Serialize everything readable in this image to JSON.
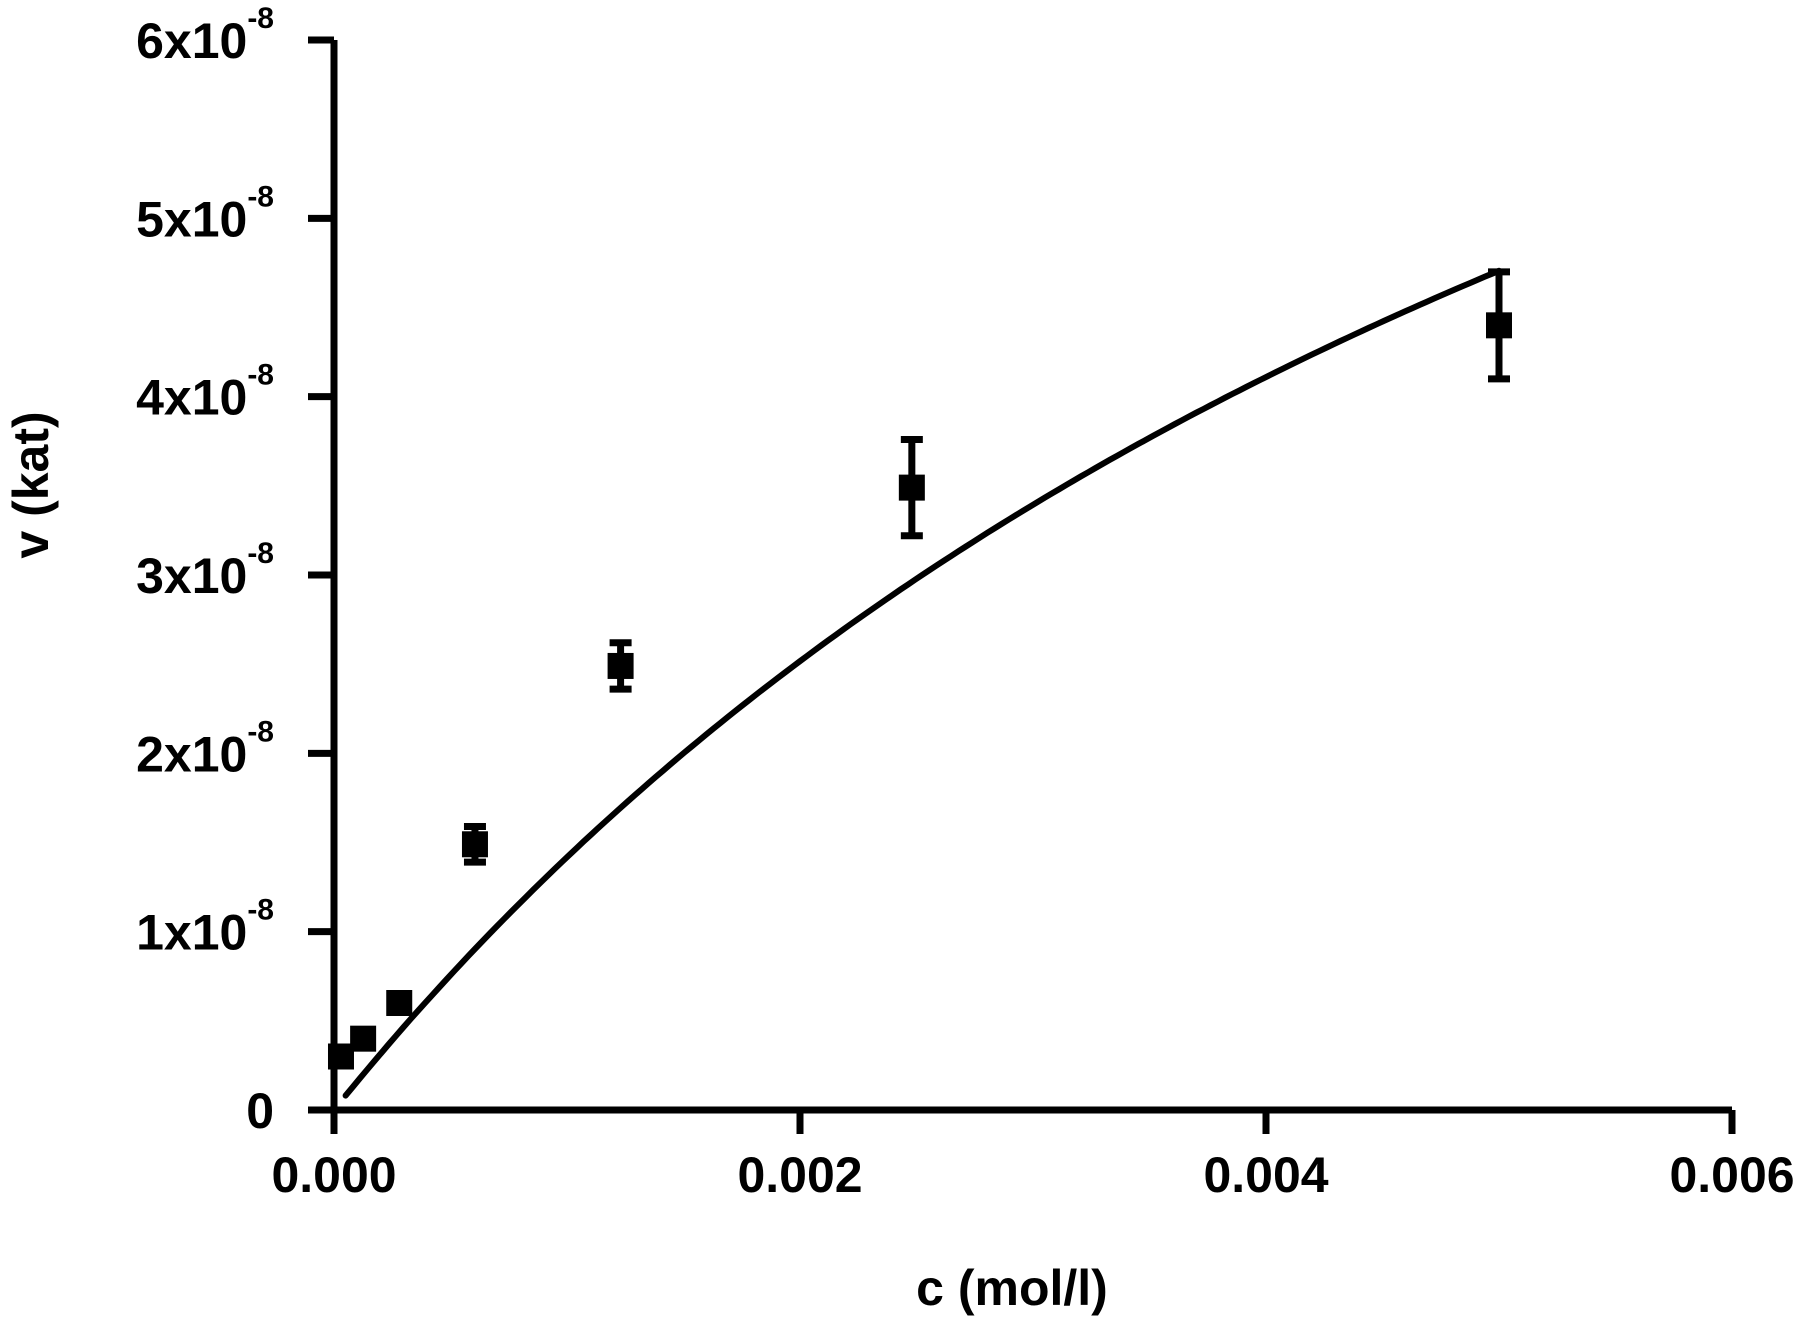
{
  "chart_data": {
    "type": "scatter",
    "title": "",
    "xlabel": "c (mol/l)",
    "ylabel": "v (kat)",
    "xlim": [
      0,
      0.006
    ],
    "ylim": [
      0,
      6e-08
    ],
    "grid": false,
    "legend": "none",
    "x_ticks": [
      {
        "value": 0,
        "label": "0.000"
      },
      {
        "value": 0.002,
        "label": "0.002"
      },
      {
        "value": 0.004,
        "label": "0.004"
      },
      {
        "value": 0.006,
        "label": "0.006"
      }
    ],
    "y_ticks": [
      {
        "value": 0,
        "mantissa": "0",
        "exponent": ""
      },
      {
        "value": 1e-08,
        "mantissa": "1x10",
        "exponent": "-8"
      },
      {
        "value": 2e-08,
        "mantissa": "2x10",
        "exponent": "-8"
      },
      {
        "value": 3e-08,
        "mantissa": "3x10",
        "exponent": "-8"
      },
      {
        "value": 4e-08,
        "mantissa": "4x10",
        "exponent": "-8"
      },
      {
        "value": 5e-08,
        "mantissa": "5x10",
        "exponent": "-8"
      },
      {
        "value": 6e-08,
        "mantissa": "6x10",
        "exponent": "-8"
      }
    ],
    "series": [
      {
        "points": [
          {
            "x": 3e-05,
            "y": 3e-09,
            "err": 3e-10
          },
          {
            "x": 0.000125,
            "y": 4e-09,
            "err": 3e-10
          },
          {
            "x": 0.00028,
            "y": 6e-09,
            "err": 3e-10
          },
          {
            "x": 0.000605,
            "y": 1.49e-08,
            "err": 1e-09
          },
          {
            "x": 0.00123,
            "y": 2.49e-08,
            "err": 1.3e-09
          },
          {
            "x": 0.00248,
            "y": 3.49e-08,
            "err": 2.7e-09
          },
          {
            "x": 0.005,
            "y": 4.4e-08,
            "err": 3e-09
          }
        ]
      }
    ],
    "fit": {
      "type": "michaelis-menten",
      "vmax": 1.12e-07,
      "km": 0.0069,
      "x_start": 5e-05,
      "x_end": 0.005
    },
    "colors": {
      "foreground": "#000000",
      "background": "#ffffff"
    }
  }
}
